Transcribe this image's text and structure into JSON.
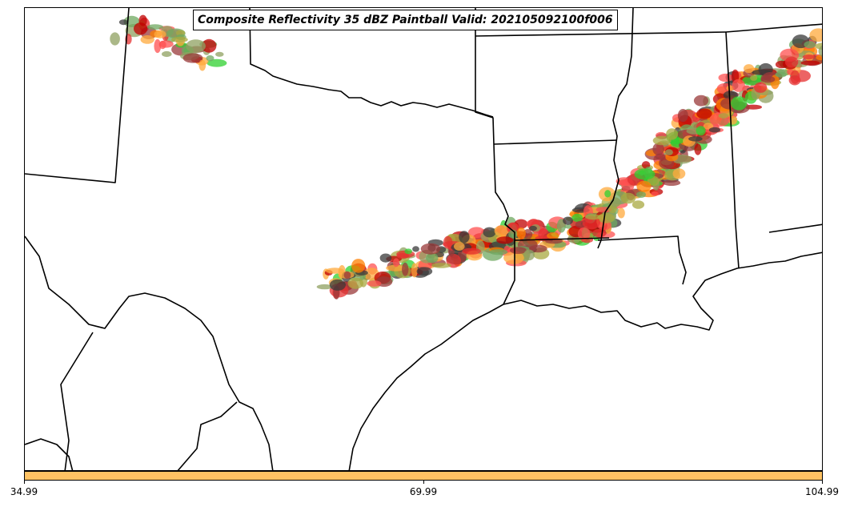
{
  "title": "Composite Reflectivity 35 dBZ Paintball Valid: 202105092100f006",
  "colorbar": {
    "color": "#ffc263",
    "ticks": [
      "34.99",
      "69.99",
      "104.99"
    ]
  },
  "paintball_colors": [
    "#c00000",
    "#ff8000",
    "#ffa93c",
    "#e63030",
    "#ff5050",
    "#30d030",
    "#3a3a3a",
    "#9a3a3a",
    "#a8a840",
    "#6fa860",
    "#8fa060"
  ]
}
